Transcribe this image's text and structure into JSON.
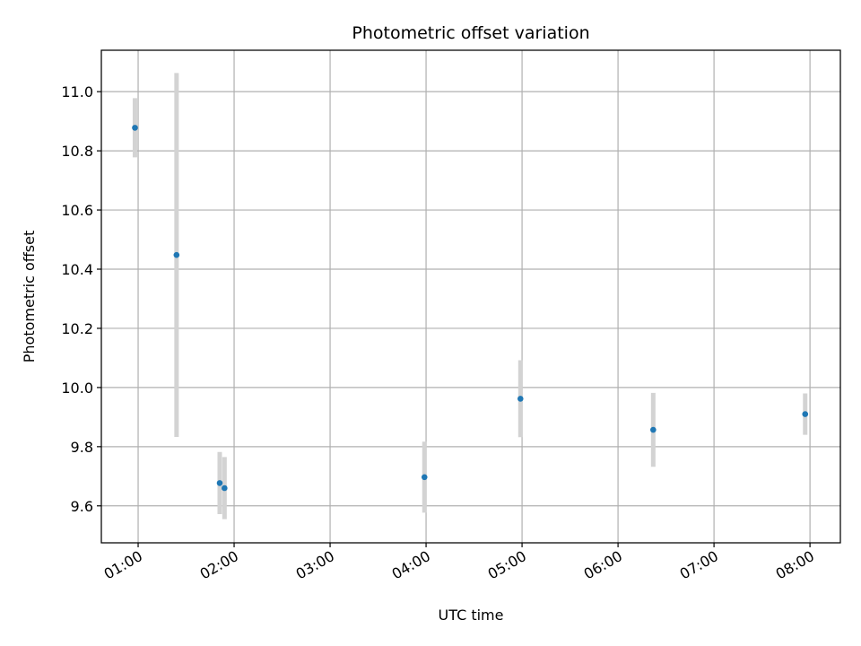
{
  "chart_data": {
    "type": "scatter",
    "title": "Photometric offset variation",
    "xlabel": "UTC time",
    "ylabel": "Photometric offset",
    "x_tick_labels": [
      "01:00",
      "02:00",
      "03:00",
      "04:00",
      "05:00",
      "06:00",
      "07:00",
      "08:00"
    ],
    "y_tick_labels": [
      "9.6",
      "9.8",
      "10.0",
      "10.2",
      "10.4",
      "10.6",
      "10.8",
      "11.0"
    ],
    "xlim": [
      "00:37",
      "08:19"
    ],
    "ylim": [
      9.475,
      11.14
    ],
    "grid": true,
    "marker_color": "#1f77b4",
    "errorbar_color": "#d3d3d3",
    "points": [
      {
        "x": "00:58",
        "y": 10.878,
        "err": 0.1
      },
      {
        "x": "01:24",
        "y": 10.448,
        "err": 0.615
      },
      {
        "x": "01:51",
        "y": 9.677,
        "err": 0.105
      },
      {
        "x": "01:54",
        "y": 9.66,
        "err": 0.105
      },
      {
        "x": "03:59",
        "y": 9.697,
        "err": 0.12
      },
      {
        "x": "04:59",
        "y": 9.962,
        "err": 0.13
      },
      {
        "x": "06:22",
        "y": 9.857,
        "err": 0.125
      },
      {
        "x": "07:57",
        "y": 9.91,
        "err": 0.07
      }
    ]
  }
}
